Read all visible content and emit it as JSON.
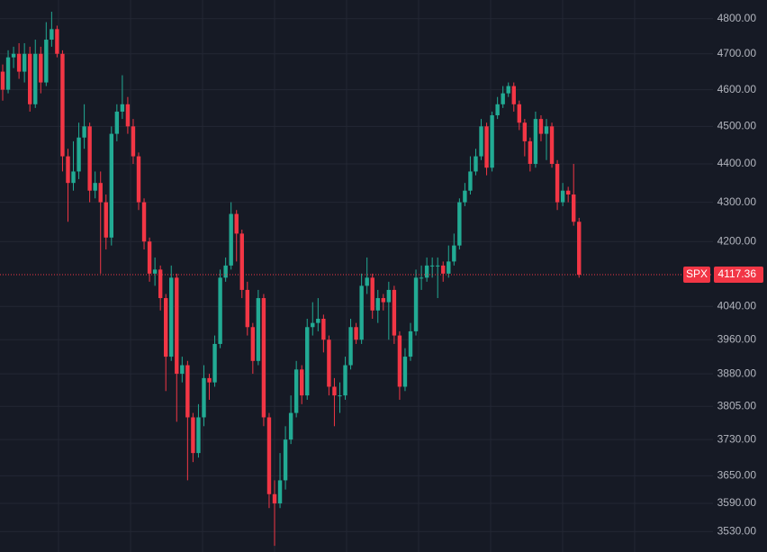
{
  "chart_data": {
    "type": "candlestick",
    "log_scale": true,
    "grid": true,
    "ylim": [
      3487,
      4854
    ],
    "yticks": [
      {
        "value": 4800,
        "label": "4800.00"
      },
      {
        "value": 4700,
        "label": "4700.00"
      },
      {
        "value": 4600,
        "label": "4600.00"
      },
      {
        "value": 4500,
        "label": "4500.00"
      },
      {
        "value": 4400,
        "label": "4400.00"
      },
      {
        "value": 4300,
        "label": "4300.00"
      },
      {
        "value": 4200,
        "label": "4200.00"
      },
      {
        "value": 4040,
        "label": "4040.00"
      },
      {
        "value": 3960,
        "label": "3960.00"
      },
      {
        "value": 3880,
        "label": "3880.00"
      },
      {
        "value": 3805,
        "label": "3805.00"
      },
      {
        "value": 3730,
        "label": "3730.00"
      },
      {
        "value": 3650,
        "label": "3650.00"
      },
      {
        "value": 3590,
        "label": "3590.00"
      },
      {
        "value": 3530,
        "label": "3530.00"
      }
    ],
    "series": [
      {
        "name": "SPX",
        "up_color": "#22ab94",
        "down_color": "#f23645",
        "open": [
          4650,
          4600,
          4690,
          4700,
          4650,
          4700,
          4560,
          4700,
          4620,
          4740,
          4770,
          4700,
          4420,
          4350,
          4380,
          4470,
          4500,
          4330,
          4350,
          4300,
          4210,
          4480,
          4540,
          4560,
          4500,
          4420,
          4300,
          4200,
          4120,
          4130,
          4060,
          3920,
          4110,
          3880,
          3900,
          3780,
          3700,
          3780,
          3870,
          3860,
          3950,
          4110,
          4140,
          4270,
          4220,
          4080,
          3990,
          3910,
          4060,
          3780,
          3610,
          3590,
          3640,
          3730,
          3790,
          3890,
          3830,
          3990,
          4000,
          4010,
          3960,
          3850,
          3830,
          3830,
          3900,
          3990,
          3960,
          4090,
          4110,
          4030,
          4060,
          4050,
          4080,
          3970,
          3850,
          3920,
          3980,
          4110,
          4110,
          4140,
          4140,
          4140,
          4120,
          4150,
          4190,
          4300,
          4330,
          4380,
          4420,
          4500,
          4390,
          4530,
          4560,
          4590,
          4610,
          4560,
          4510,
          4460,
          4400,
          4520,
          4480,
          4500,
          4400,
          4300,
          4330,
          4320,
          4250
        ],
        "high": [
          4670,
          4710,
          4720,
          4730,
          4730,
          4720,
          4740,
          4720,
          4790,
          4820,
          4780,
          4710,
          4440,
          4460,
          4510,
          4560,
          4510,
          4380,
          4380,
          4320,
          4500,
          4560,
          4640,
          4580,
          4520,
          4430,
          4310,
          4210,
          4160,
          4140,
          4070,
          4140,
          4120,
          3920,
          3910,
          3790,
          3810,
          3900,
          3880,
          3970,
          4130,
          4160,
          4300,
          4280,
          4230,
          4100,
          4000,
          4080,
          4070,
          3790,
          3640,
          3700,
          3760,
          3830,
          3910,
          3900,
          4010,
          4050,
          4060,
          4020,
          3970,
          3870,
          3860,
          3920,
          4010,
          4000,
          4120,
          4160,
          4120,
          4080,
          4070,
          4100,
          4090,
          3980,
          3940,
          4000,
          4130,
          4140,
          4160,
          4160,
          4160,
          4150,
          4190,
          4220,
          4310,
          4350,
          4420,
          4440,
          4520,
          4510,
          4540,
          4580,
          4610,
          4620,
          4620,
          4570,
          4520,
          4470,
          4540,
          4530,
          4520,
          4510,
          4410,
          4350,
          4340,
          4400,
          4260
        ],
        "low": [
          4570,
          4590,
          4660,
          4630,
          4620,
          4540,
          4550,
          4590,
          4610,
          4720,
          4690,
          4380,
          4250,
          4330,
          4360,
          4440,
          4300,
          4310,
          4120,
          4180,
          4190,
          4460,
          4520,
          4480,
          4400,
          4280,
          4180,
          4100,
          4090,
          4030,
          3840,
          3910,
          3770,
          3860,
          3640,
          3680,
          3690,
          3760,
          3820,
          3850,
          3940,
          4100,
          4130,
          4150,
          4060,
          3970,
          3880,
          3900,
          3760,
          3580,
          3500,
          3580,
          3620,
          3720,
          3780,
          3810,
          3820,
          3970,
          3980,
          3930,
          3830,
          3760,
          3790,
          3820,
          3890,
          3950,
          3950,
          4070,
          4010,
          4000,
          4030,
          3960,
          3950,
          3820,
          3840,
          3910,
          3970,
          4080,
          4100,
          4110,
          4060,
          4100,
          4110,
          4140,
          4180,
          4290,
          4320,
          4370,
          4410,
          4370,
          4380,
          4520,
          4550,
          4580,
          4540,
          4490,
          4420,
          4380,
          4390,
          4460,
          4410,
          4390,
          4280,
          4290,
          4300,
          4240,
          4110
        ],
        "close": [
          4600,
          4690,
          4700,
          4650,
          4700,
          4560,
          4700,
          4620,
          4740,
          4770,
          4700,
          4420,
          4350,
          4380,
          4470,
          4500,
          4330,
          4350,
          4300,
          4210,
          4480,
          4540,
          4560,
          4500,
          4420,
          4300,
          4200,
          4120,
          4130,
          4060,
          3920,
          4110,
          3880,
          3900,
          3780,
          3700,
          3780,
          3870,
          3860,
          3950,
          4110,
          4140,
          4270,
          4220,
          4080,
          3990,
          3910,
          4060,
          3780,
          3610,
          3590,
          3640,
          3730,
          3790,
          3890,
          3830,
          3990,
          4000,
          4010,
          3960,
          3850,
          3830,
          3830,
          3900,
          3990,
          3960,
          4090,
          4110,
          4030,
          4060,
          4050,
          4080,
          3970,
          3850,
          3920,
          3980,
          4110,
          4110,
          4140,
          4140,
          4140,
          4120,
          4150,
          4190,
          4300,
          4330,
          4380,
          4420,
          4500,
          4390,
          4530,
          4560,
          4590,
          4610,
          4560,
          4510,
          4460,
          4400,
          4520,
          4480,
          4500,
          4400,
          4300,
          4330,
          4320,
          4250,
          4117.36
        ]
      }
    ]
  }
}
